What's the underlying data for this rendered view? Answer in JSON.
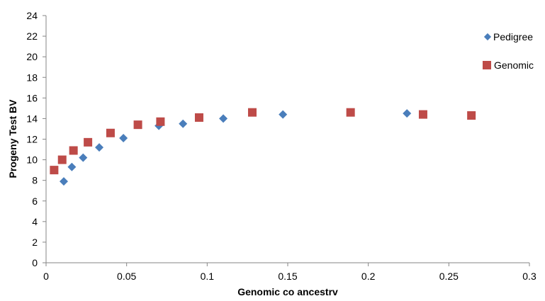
{
  "chart_data": {
    "type": "scatter",
    "title": "",
    "xlabel": "Genomic co ancestrv",
    "ylabel": "Progeny Test BV",
    "xlim": [
      0,
      0.3
    ],
    "ylim": [
      0,
      24
    ],
    "x_ticks": [
      0,
      0.05,
      0.1,
      0.15,
      0.2,
      0.25,
      0.3
    ],
    "x_tick_labels": [
      "0",
      "0.05",
      "0.1",
      "0.15",
      "0.2",
      "0.25",
      "0.3"
    ],
    "y_ticks": [
      0,
      2,
      4,
      6,
      8,
      10,
      12,
      14,
      16,
      18,
      20,
      22,
      24
    ],
    "y_tick_labels": [
      "0",
      "2",
      "4",
      "6",
      "8",
      "10",
      "12",
      "14",
      "16",
      "18",
      "20",
      "22",
      "24"
    ],
    "grid": false,
    "legend_position": "top-right",
    "series": [
      {
        "name": "Pedigree",
        "marker": "diamond",
        "color": "#4a7ebb",
        "points": [
          {
            "x": 0.011,
            "y": 7.9
          },
          {
            "x": 0.016,
            "y": 9.3
          },
          {
            "x": 0.023,
            "y": 10.2
          },
          {
            "x": 0.033,
            "y": 11.2
          },
          {
            "x": 0.048,
            "y": 12.1
          },
          {
            "x": 0.07,
            "y": 13.3
          },
          {
            "x": 0.085,
            "y": 13.5
          },
          {
            "x": 0.11,
            "y": 14.0
          },
          {
            "x": 0.147,
            "y": 14.4
          },
          {
            "x": 0.224,
            "y": 14.5
          }
        ]
      },
      {
        "name": "Genomic",
        "marker": "square",
        "color": "#be4b48",
        "points": [
          {
            "x": 0.005,
            "y": 9.0
          },
          {
            "x": 0.01,
            "y": 10.0
          },
          {
            "x": 0.017,
            "y": 10.9
          },
          {
            "x": 0.026,
            "y": 11.7
          },
          {
            "x": 0.04,
            "y": 12.6
          },
          {
            "x": 0.057,
            "y": 13.4
          },
          {
            "x": 0.071,
            "y": 13.7
          },
          {
            "x": 0.095,
            "y": 14.1
          },
          {
            "x": 0.128,
            "y": 14.6
          },
          {
            "x": 0.189,
            "y": 14.6
          },
          {
            "x": 0.234,
            "y": 14.4
          },
          {
            "x": 0.264,
            "y": 14.3
          }
        ]
      }
    ]
  }
}
